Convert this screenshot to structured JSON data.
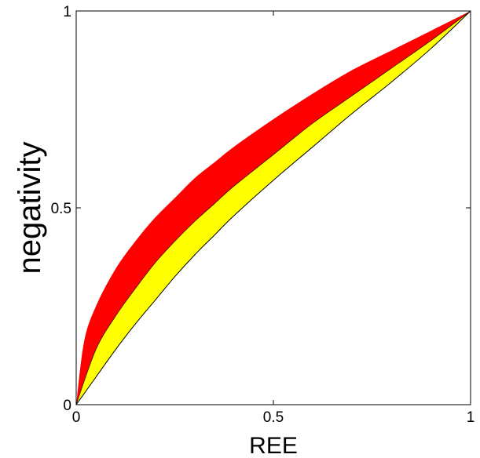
{
  "chart_data": {
    "type": "area",
    "title": "",
    "xlabel": "REE",
    "ylabel": "negativity",
    "xlim": [
      0,
      1
    ],
    "ylim": [
      0,
      1
    ],
    "x_ticks": [
      "0",
      "0.5",
      "1"
    ],
    "y_ticks": [
      "0",
      "0.5",
      "1"
    ],
    "grid": false,
    "legend": "none",
    "series": [
      {
        "color": "#ff0000",
        "upper_boundary": [
          [
            0,
            0
          ],
          [
            0.02,
            0.16
          ],
          [
            0.05,
            0.25
          ],
          [
            0.1,
            0.345
          ],
          [
            0.15,
            0.415
          ],
          [
            0.2,
            0.475
          ],
          [
            0.25,
            0.525
          ],
          [
            0.3,
            0.575
          ],
          [
            0.35,
            0.615
          ],
          [
            0.4,
            0.655
          ],
          [
            0.5,
            0.725
          ],
          [
            0.6,
            0.79
          ],
          [
            0.7,
            0.85
          ],
          [
            0.8,
            0.9
          ],
          [
            0.9,
            0.95
          ],
          [
            1,
            1
          ]
        ],
        "lower_boundary": [
          [
            0,
            0
          ],
          [
            0.05,
            0.14
          ],
          [
            0.1,
            0.225
          ],
          [
            0.15,
            0.295
          ],
          [
            0.2,
            0.36
          ],
          [
            0.25,
            0.415
          ],
          [
            0.3,
            0.465
          ],
          [
            0.35,
            0.51
          ],
          [
            0.4,
            0.555
          ],
          [
            0.5,
            0.635
          ],
          [
            0.6,
            0.715
          ],
          [
            0.7,
            0.785
          ],
          [
            0.8,
            0.855
          ],
          [
            0.9,
            0.925
          ],
          [
            1,
            1
          ]
        ]
      },
      {
        "color": "#ffff00",
        "upper_boundary": [
          [
            0,
            0
          ],
          [
            0.05,
            0.14
          ],
          [
            0.1,
            0.225
          ],
          [
            0.15,
            0.295
          ],
          [
            0.2,
            0.36
          ],
          [
            0.25,
            0.415
          ],
          [
            0.3,
            0.465
          ],
          [
            0.35,
            0.51
          ],
          [
            0.4,
            0.555
          ],
          [
            0.5,
            0.635
          ],
          [
            0.6,
            0.715
          ],
          [
            0.7,
            0.785
          ],
          [
            0.8,
            0.855
          ],
          [
            0.9,
            0.925
          ],
          [
            1,
            1
          ]
        ],
        "lower_boundary": [
          [
            0,
            0
          ],
          [
            0.05,
            0.07
          ],
          [
            0.1,
            0.14
          ],
          [
            0.15,
            0.205
          ],
          [
            0.2,
            0.265
          ],
          [
            0.25,
            0.325
          ],
          [
            0.3,
            0.38
          ],
          [
            0.35,
            0.43
          ],
          [
            0.4,
            0.48
          ],
          [
            0.5,
            0.57
          ],
          [
            0.6,
            0.655
          ],
          [
            0.7,
            0.74
          ],
          [
            0.8,
            0.82
          ],
          [
            0.9,
            0.905
          ],
          [
            1,
            1
          ]
        ]
      }
    ]
  }
}
